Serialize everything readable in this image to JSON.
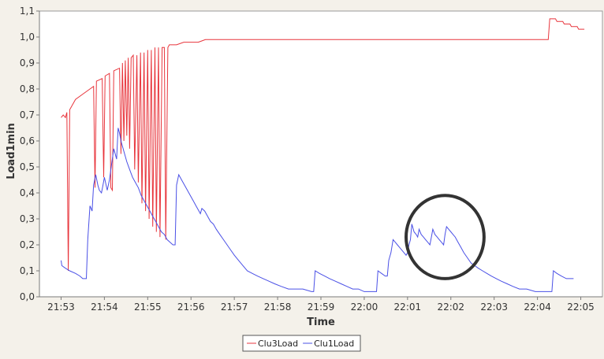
{
  "chart_data": {
    "type": "line",
    "title": "",
    "xlabel": "Time",
    "ylabel": "Load1min",
    "xlim": [
      "21:52:30",
      "22:05:30"
    ],
    "ylim": [
      0.0,
      1.1
    ],
    "x_ticks": [
      "21:53",
      "21:54",
      "21:55",
      "21:56",
      "21:57",
      "21:58",
      "21:59",
      "22:00",
      "22:01",
      "22:02",
      "22:03",
      "22:04",
      "22:05"
    ],
    "y_ticks": [
      "0,0",
      "0,1",
      "0,2",
      "0,3",
      "0,4",
      "0,5",
      "0,6",
      "0,7",
      "0,8",
      "0,9",
      "1,0",
      "1,1"
    ],
    "grid": false,
    "legend": "bottom-center",
    "series": [
      {
        "name": "Clu3Load",
        "color": "#e8353c",
        "points": [
          [
            "21:53:00",
            0.69
          ],
          [
            "21:53:03",
            0.7
          ],
          [
            "21:53:06",
            0.69
          ],
          [
            "21:53:08",
            0.71
          ],
          [
            "21:53:10",
            0.1
          ],
          [
            "21:53:12",
            0.72
          ],
          [
            "21:53:20",
            0.76
          ],
          [
            "21:53:30",
            0.78
          ],
          [
            "21:53:40",
            0.8
          ],
          [
            "21:53:45",
            0.81
          ],
          [
            "21:53:47",
            0.42
          ],
          [
            "21:53:49",
            0.83
          ],
          [
            "21:53:57",
            0.84
          ],
          [
            "21:53:59",
            0.46
          ],
          [
            "21:54:01",
            0.85
          ],
          [
            "21:54:07",
            0.86
          ],
          [
            "21:54:09",
            0.42
          ],
          [
            "21:54:11",
            0.41
          ],
          [
            "21:54:13",
            0.87
          ],
          [
            "21:54:21",
            0.88
          ],
          [
            "21:54:23",
            0.55
          ],
          [
            "21:54:25",
            0.9
          ],
          [
            "21:54:27",
            0.6
          ],
          [
            "21:54:29",
            0.91
          ],
          [
            "21:54:31",
            0.62
          ],
          [
            "21:54:33",
            0.92
          ],
          [
            "21:54:35",
            0.57
          ],
          [
            "21:54:37",
            0.92
          ],
          [
            "21:54:40",
            0.93
          ],
          [
            "21:54:42",
            0.49
          ],
          [
            "21:54:45",
            0.93
          ],
          [
            "21:54:47",
            0.44
          ],
          [
            "21:54:50",
            0.94
          ],
          [
            "21:54:52",
            0.36
          ],
          [
            "21:54:55",
            0.94
          ],
          [
            "21:54:57",
            0.33
          ],
          [
            "21:55:00",
            0.95
          ],
          [
            "21:55:02",
            0.3
          ],
          [
            "21:55:05",
            0.95
          ],
          [
            "21:55:07",
            0.27
          ],
          [
            "21:55:10",
            0.96
          ],
          [
            "21:55:12",
            0.25
          ],
          [
            "21:55:15",
            0.96
          ],
          [
            "21:55:17",
            0.23
          ],
          [
            "21:55:20",
            0.96
          ],
          [
            "21:55:23",
            0.96
          ],
          [
            "21:55:25",
            0.22
          ],
          [
            "21:55:28",
            0.96
          ],
          [
            "21:55:30",
            0.97
          ],
          [
            "21:55:40",
            0.97
          ],
          [
            "21:55:50",
            0.98
          ],
          [
            "21:56:00",
            0.98
          ],
          [
            "21:56:10",
            0.98
          ],
          [
            "21:56:20",
            0.99
          ],
          [
            "22:04:15",
            0.99
          ],
          [
            "22:04:17",
            1.07
          ],
          [
            "22:04:25",
            1.07
          ],
          [
            "22:04:27",
            1.06
          ],
          [
            "22:04:35",
            1.06
          ],
          [
            "22:04:37",
            1.05
          ],
          [
            "22:04:45",
            1.05
          ],
          [
            "22:04:47",
            1.04
          ],
          [
            "22:04:55",
            1.04
          ],
          [
            "22:04:57",
            1.03
          ],
          [
            "22:05:05",
            1.03
          ]
        ]
      },
      {
        "name": "Clu1Load",
        "color": "#4a50e6",
        "points": [
          [
            "21:53:00",
            0.14
          ],
          [
            "21:53:01",
            0.12
          ],
          [
            "21:53:06",
            0.11
          ],
          [
            "21:53:12",
            0.1
          ],
          [
            "21:53:20",
            0.09
          ],
          [
            "21:53:26",
            0.08
          ],
          [
            "21:53:30",
            0.07
          ],
          [
            "21:53:35",
            0.07
          ],
          [
            "21:53:37",
            0.22
          ],
          [
            "21:53:40",
            0.35
          ],
          [
            "21:53:43",
            0.33
          ],
          [
            "21:53:45",
            0.43
          ],
          [
            "21:53:48",
            0.47
          ],
          [
            "21:53:51",
            0.43
          ],
          [
            "21:53:53",
            0.41
          ],
          [
            "21:53:56",
            0.4
          ],
          [
            "21:53:58",
            0.43
          ],
          [
            "21:54:00",
            0.46
          ],
          [
            "21:54:04",
            0.41
          ],
          [
            "21:54:07",
            0.45
          ],
          [
            "21:54:10",
            0.51
          ],
          [
            "21:54:13",
            0.57
          ],
          [
            "21:54:15",
            0.55
          ],
          [
            "21:54:17",
            0.53
          ],
          [
            "21:54:19",
            0.65
          ],
          [
            "21:54:21",
            0.63
          ],
          [
            "21:54:23",
            0.6
          ],
          [
            "21:54:27",
            0.56
          ],
          [
            "21:54:31",
            0.52
          ],
          [
            "21:54:35",
            0.49
          ],
          [
            "21:54:39",
            0.46
          ],
          [
            "21:54:43",
            0.44
          ],
          [
            "21:54:47",
            0.42
          ],
          [
            "21:54:51",
            0.39
          ],
          [
            "21:54:55",
            0.37
          ],
          [
            "21:54:59",
            0.35
          ],
          [
            "21:55:03",
            0.33
          ],
          [
            "21:55:07",
            0.31
          ],
          [
            "21:55:11",
            0.29
          ],
          [
            "21:55:15",
            0.27
          ],
          [
            "21:55:19",
            0.25
          ],
          [
            "21:55:23",
            0.24
          ],
          [
            "21:55:27",
            0.22
          ],
          [
            "21:55:31",
            0.21
          ],
          [
            "21:55:35",
            0.2
          ],
          [
            "21:55:38",
            0.2
          ],
          [
            "21:55:40",
            0.43
          ],
          [
            "21:55:43",
            0.47
          ],
          [
            "21:55:47",
            0.45
          ],
          [
            "21:55:51",
            0.43
          ],
          [
            "21:55:55",
            0.41
          ],
          [
            "21:55:59",
            0.39
          ],
          [
            "21:56:03",
            0.37
          ],
          [
            "21:56:07",
            0.35
          ],
          [
            "21:56:11",
            0.33
          ],
          [
            "21:56:13",
            0.32
          ],
          [
            "21:56:15",
            0.34
          ],
          [
            "21:56:19",
            0.33
          ],
          [
            "21:56:23",
            0.31
          ],
          [
            "21:56:27",
            0.29
          ],
          [
            "21:56:31",
            0.28
          ],
          [
            "21:56:35",
            0.26
          ],
          [
            "21:56:40",
            0.24
          ],
          [
            "21:56:45",
            0.22
          ],
          [
            "21:56:50",
            0.2
          ],
          [
            "21:56:55",
            0.18
          ],
          [
            "21:57:00",
            0.16
          ],
          [
            "21:57:06",
            0.14
          ],
          [
            "21:57:12",
            0.12
          ],
          [
            "21:57:18",
            0.1
          ],
          [
            "21:57:25",
            0.09
          ],
          [
            "21:57:32",
            0.08
          ],
          [
            "21:57:40",
            0.07
          ],
          [
            "21:57:48",
            0.06
          ],
          [
            "21:57:56",
            0.05
          ],
          [
            "21:58:05",
            0.04
          ],
          [
            "21:58:15",
            0.03
          ],
          [
            "21:58:25",
            0.03
          ],
          [
            "21:58:35",
            0.03
          ],
          [
            "21:58:47",
            0.02
          ],
          [
            "21:58:50",
            0.02
          ],
          [
            "21:58:52",
            0.1
          ],
          [
            "21:58:58",
            0.09
          ],
          [
            "21:59:05",
            0.08
          ],
          [
            "21:59:12",
            0.07
          ],
          [
            "21:59:20",
            0.06
          ],
          [
            "21:59:28",
            0.05
          ],
          [
            "21:59:36",
            0.04
          ],
          [
            "21:59:44",
            0.03
          ],
          [
            "21:59:52",
            0.03
          ],
          [
            "22:00:00",
            0.02
          ],
          [
            "22:00:10",
            0.02
          ],
          [
            "22:00:17",
            0.02
          ],
          [
            "22:00:19",
            0.1
          ],
          [
            "22:00:24",
            0.09
          ],
          [
            "22:00:29",
            0.08
          ],
          [
            "22:00:32",
            0.08
          ],
          [
            "22:00:34",
            0.14
          ],
          [
            "22:00:37",
            0.17
          ],
          [
            "22:00:40",
            0.22
          ],
          [
            "22:00:43",
            0.21
          ],
          [
            "22:00:46",
            0.2
          ],
          [
            "22:00:49",
            0.19
          ],
          [
            "22:00:52",
            0.18
          ],
          [
            "22:00:55",
            0.17
          ],
          [
            "22:00:58",
            0.16
          ],
          [
            "22:01:00",
            0.17
          ],
          [
            "22:01:02",
            0.2
          ],
          [
            "22:01:04",
            0.22
          ],
          [
            "22:01:06",
            0.28
          ],
          [
            "22:01:09",
            0.25
          ],
          [
            "22:01:12",
            0.24
          ],
          [
            "22:01:14",
            0.23
          ],
          [
            "22:01:16",
            0.26
          ],
          [
            "22:01:19",
            0.24
          ],
          [
            "22:01:22",
            0.23
          ],
          [
            "22:01:25",
            0.22
          ],
          [
            "22:01:28",
            0.21
          ],
          [
            "22:01:31",
            0.2
          ],
          [
            "22:01:33",
            0.23
          ],
          [
            "22:01:35",
            0.26
          ],
          [
            "22:01:38",
            0.24
          ],
          [
            "22:01:41",
            0.23
          ],
          [
            "22:01:44",
            0.22
          ],
          [
            "22:01:47",
            0.21
          ],
          [
            "22:01:50",
            0.2
          ],
          [
            "22:01:52",
            0.24
          ],
          [
            "22:01:54",
            0.27
          ],
          [
            "22:01:57",
            0.26
          ],
          [
            "22:02:00",
            0.25
          ],
          [
            "22:02:03",
            0.24
          ],
          [
            "22:02:06",
            0.23
          ],
          [
            "22:02:10",
            0.21
          ],
          [
            "22:02:14",
            0.19
          ],
          [
            "22:02:18",
            0.17
          ],
          [
            "22:02:23",
            0.15
          ],
          [
            "22:02:28",
            0.13
          ],
          [
            "22:02:33",
            0.12
          ],
          [
            "22:02:38",
            0.11
          ],
          [
            "22:02:44",
            0.1
          ],
          [
            "22:02:50",
            0.09
          ],
          [
            "22:02:56",
            0.08
          ],
          [
            "22:03:03",
            0.07
          ],
          [
            "22:03:10",
            0.06
          ],
          [
            "22:03:18",
            0.05
          ],
          [
            "22:03:26",
            0.04
          ],
          [
            "22:03:35",
            0.03
          ],
          [
            "22:03:45",
            0.03
          ],
          [
            "22:03:57",
            0.02
          ],
          [
            "22:04:20",
            0.02
          ],
          [
            "22:04:22",
            0.1
          ],
          [
            "22:04:27",
            0.09
          ],
          [
            "22:04:33",
            0.08
          ],
          [
            "22:04:40",
            0.07
          ],
          [
            "22:04:50",
            0.07
          ]
        ]
      }
    ],
    "annotations": [
      {
        "type": "ellipse",
        "center": [
          "22:01:52",
          0.23
        ],
        "rx_seconds": 54,
        "ry_value": 0.16,
        "color": "#333333"
      }
    ]
  }
}
